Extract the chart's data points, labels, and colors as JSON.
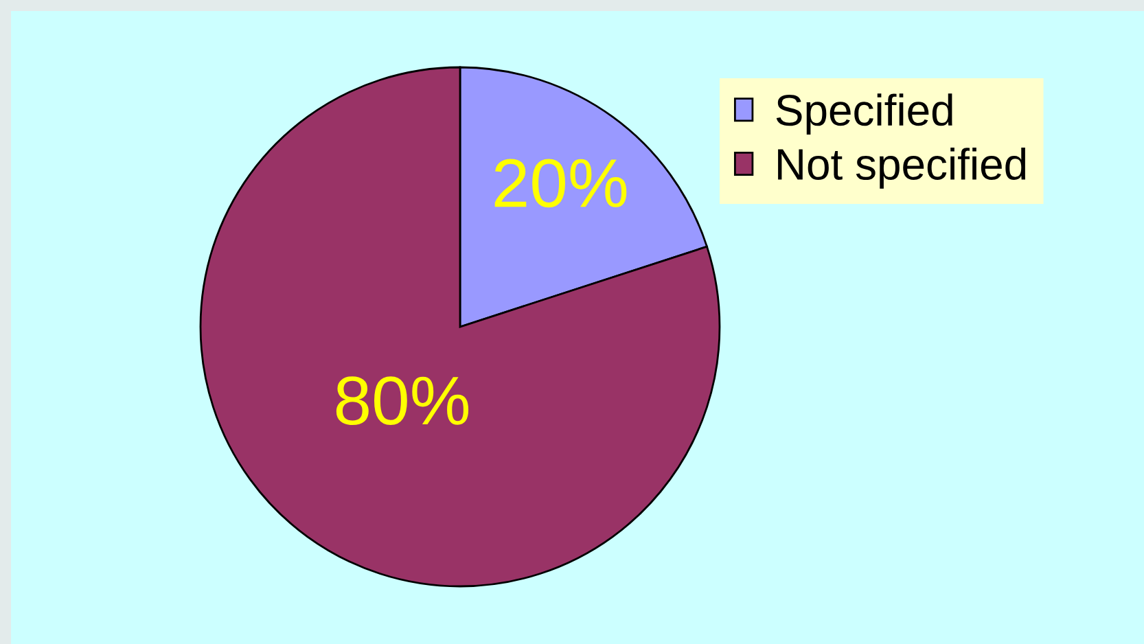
{
  "chart_data": {
    "type": "pie",
    "categories": [
      "Specified",
      "Not specified"
    ],
    "values": [
      20,
      80
    ],
    "colors": [
      "#9999ff",
      "#993366"
    ],
    "value_labels": [
      "20%",
      "80%"
    ],
    "legend": "top right"
  }
}
